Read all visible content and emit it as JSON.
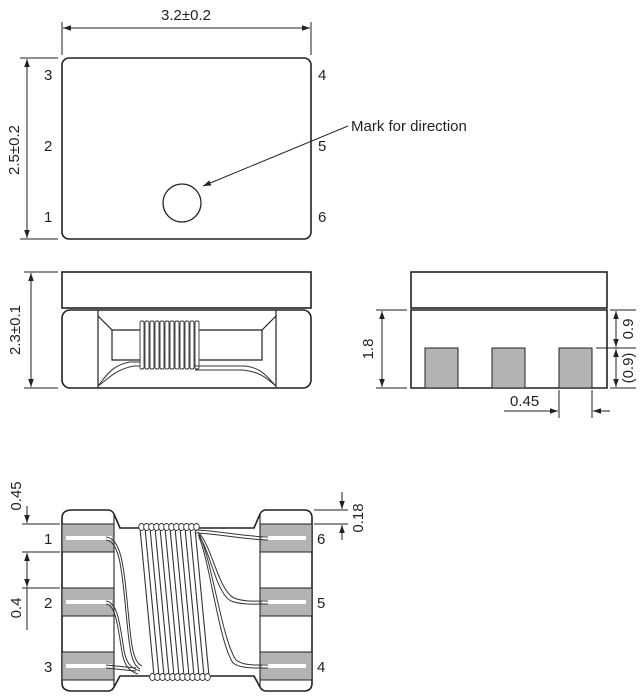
{
  "top_view": {
    "width_dim": "3.2±0.2",
    "height_dim": "2.5±0.2",
    "pins_left": [
      "3",
      "2",
      "1"
    ],
    "pins_right": [
      "4",
      "5",
      "6"
    ],
    "mark_label": "Mark for direction"
  },
  "front_view": {
    "height_dim": "2.3±0.1"
  },
  "side_view": {
    "height_dim": "1.8",
    "upper_dim": "0.9",
    "lower_dim": "(0.9)",
    "width_dim": "0.45"
  },
  "bottom_view": {
    "pitch_top_dim": "0.45",
    "pitch_mid_dim": "0.4",
    "gap_dim": "0.18",
    "pins_left": [
      "1",
      "2",
      "3"
    ],
    "pins_right": [
      "6",
      "5",
      "4"
    ]
  },
  "colors": {
    "line": "#222222",
    "pad": "#b3b3b3"
  }
}
